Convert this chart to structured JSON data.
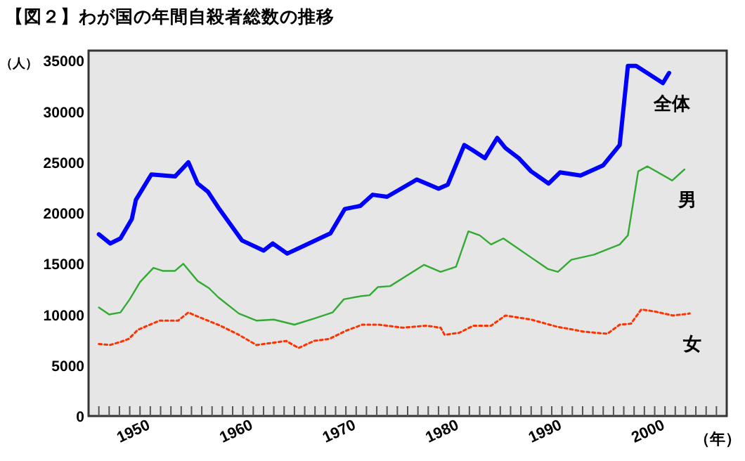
{
  "chart_data": {
    "type": "line",
    "title": "【図２】わが国の年間自殺者総数の推移",
    "xlabel": "（年）",
    "ylabel": "（人）",
    "xlim": [
      1946,
      2008
    ],
    "ylim": [
      0,
      36000
    ],
    "xticks": [
      {
        "value": 1947,
        "label": null
      },
      {
        "value": 1948,
        "label": null
      },
      {
        "value": 1949,
        "label": null
      },
      1950,
      {
        "value": 1951,
        "label": null
      },
      {
        "value": 1952,
        "label": null
      },
      {
        "value": 1953,
        "label": null
      },
      {
        "value": 1954,
        "label": null
      },
      {
        "value": 1955,
        "label": null
      },
      {
        "value": 1956,
        "label": null
      },
      {
        "value": 1957,
        "label": null
      },
      {
        "value": 1958,
        "label": null
      },
      {
        "value": 1959,
        "label": null
      },
      1960,
      {
        "value": 1961,
        "label": null
      },
      {
        "value": 1962,
        "label": null
      },
      {
        "value": 1963,
        "label": null
      },
      {
        "value": 1964,
        "label": null
      },
      {
        "value": 1965,
        "label": null
      },
      {
        "value": 1966,
        "label": null
      },
      {
        "value": 1967,
        "label": null
      },
      {
        "value": 1968,
        "label": null
      },
      {
        "value": 1969,
        "label": null
      },
      1970,
      {
        "value": 1971,
        "label": null
      },
      {
        "value": 1972,
        "label": null
      },
      {
        "value": 1973,
        "label": null
      },
      {
        "value": 1974,
        "label": null
      },
      {
        "value": 1975,
        "label": null
      },
      {
        "value": 1976,
        "label": null
      },
      {
        "value": 1977,
        "label": null
      },
      {
        "value": 1978,
        "label": null
      },
      {
        "value": 1979,
        "label": null
      },
      1980,
      {
        "value": 1981,
        "label": null
      },
      {
        "value": 1982,
        "label": null
      },
      {
        "value": 1983,
        "label": null
      },
      {
        "value": 1984,
        "label": null
      },
      {
        "value": 1985,
        "label": null
      },
      {
        "value": 1986,
        "label": null
      },
      {
        "value": 1987,
        "label": null
      },
      {
        "value": 1988,
        "label": null
      },
      {
        "value": 1989,
        "label": null
      },
      1990,
      {
        "value": 1991,
        "label": null
      },
      {
        "value": 1992,
        "label": null
      },
      {
        "value": 1993,
        "label": null
      },
      {
        "value": 1994,
        "label": null
      },
      {
        "value": 1995,
        "label": null
      },
      {
        "value": 1996,
        "label": null
      },
      {
        "value": 1997,
        "label": null
      },
      {
        "value": 1998,
        "label": null
      },
      {
        "value": 1999,
        "label": null
      },
      2000,
      {
        "value": 2001,
        "label": null
      },
      {
        "value": 2002,
        "label": null
      },
      {
        "value": 2003,
        "label": null
      },
      {
        "value": 2004,
        "label": null
      },
      {
        "value": 2005,
        "label": null
      },
      {
        "value": 2006,
        "label": null
      },
      {
        "value": 2007,
        "label": null
      }
    ],
    "yticks": [
      0,
      5000,
      10000,
      15000,
      20000,
      25000,
      30000,
      35000
    ],
    "grid": false,
    "marker": "none",
    "series": [
      {
        "name": "全体",
        "color": "#0000ff",
        "line_style": "solid",
        "x": [
          1947,
          1948.1,
          1949.1,
          1950.2,
          1950.6,
          1952.1,
          1954.4,
          1955.7,
          1956.6,
          1957.6,
          1958.7,
          1960.9,
          1963,
          1963.9,
          1965.3,
          1967,
          1969.5,
          1970.9,
          1972.4,
          1973.6,
          1975,
          1977.9,
          1980,
          1980.9,
          1982.5,
          1983.3,
          1984.5,
          1985.7,
          1986.5,
          1987.8,
          1989,
          1990.7,
          1991.8,
          1993.8,
          1996,
          1997.6,
          1998.4,
          1999.2,
          2001.8,
          2002.4
        ],
        "values": [
          17900,
          17000,
          17500,
          19400,
          21300,
          23800,
          23600,
          25000,
          22900,
          22100,
          20400,
          17300,
          16300,
          17000,
          16000,
          16800,
          18000,
          20400,
          20700,
          21800,
          21600,
          23300,
          22400,
          22800,
          26700,
          26200,
          25400,
          27400,
          26400,
          25400,
          24100,
          22900,
          24000,
          23700,
          24700,
          26700,
          34500,
          34500,
          32800,
          33800
        ]
      },
      {
        "name": "男",
        "color": "#33aa33",
        "line_style": "solid",
        "x": [
          1947,
          1948,
          1949.1,
          1950,
          1951,
          1952.3,
          1953.2,
          1954.4,
          1955.2,
          1956.6,
          1957.7,
          1958.6,
          1960.6,
          1962.3,
          1964,
          1966,
          1967.9,
          1969.7,
          1970.8,
          1972.4,
          1973.3,
          1974.1,
          1975.3,
          1978.6,
          1980.2,
          1981.7,
          1982.9,
          1984,
          1985.1,
          1986.3,
          1990.6,
          1991.6,
          1992.9,
          1995.1,
          1997.6,
          1998.4,
          1999.4,
          2000.3,
          2002.7,
          2003.9
        ],
        "values": [
          10700,
          10000,
          10200,
          11500,
          13200,
          14600,
          14300,
          14300,
          15000,
          13300,
          12600,
          11700,
          10100,
          9400,
          9500,
          9000,
          9600,
          10200,
          11500,
          11800,
          11900,
          12700,
          12800,
          14900,
          14200,
          14700,
          18200,
          17800,
          16900,
          17500,
          14500,
          14200,
          15400,
          15900,
          16900,
          17800,
          24100,
          24600,
          23200,
          24300
        ]
      },
      {
        "name": "女",
        "color": "#ff3300",
        "line_style": "dotted",
        "x": [
          1947,
          1948.1,
          1949.1,
          1949.9,
          1950.8,
          1952.9,
          1954.7,
          1955.7,
          1956.6,
          1958.8,
          1960.6,
          1962.3,
          1963.8,
          1965.2,
          1966.4,
          1967.9,
          1969.4,
          1971,
          1972.6,
          1974.2,
          1976.5,
          1978.8,
          1980.2,
          1980.6,
          1982,
          1983.4,
          1985.1,
          1986.5,
          1989,
          1991.5,
          1994.2,
          1996.4,
          1997.6,
          1998.7,
          1999.7,
          2001,
          2002.8,
          2004.4
        ],
        "values": [
          7100,
          7000,
          7300,
          7600,
          8500,
          9400,
          9400,
          10200,
          9800,
          8900,
          8000,
          7000,
          7200,
          7400,
          6700,
          7400,
          7600,
          8400,
          9000,
          9000,
          8700,
          8900,
          8700,
          8000,
          8200,
          8900,
          8900,
          9900,
          9500,
          8800,
          8300,
          8100,
          9000,
          9100,
          10500,
          10300,
          9900,
          10100
        ]
      }
    ]
  }
}
